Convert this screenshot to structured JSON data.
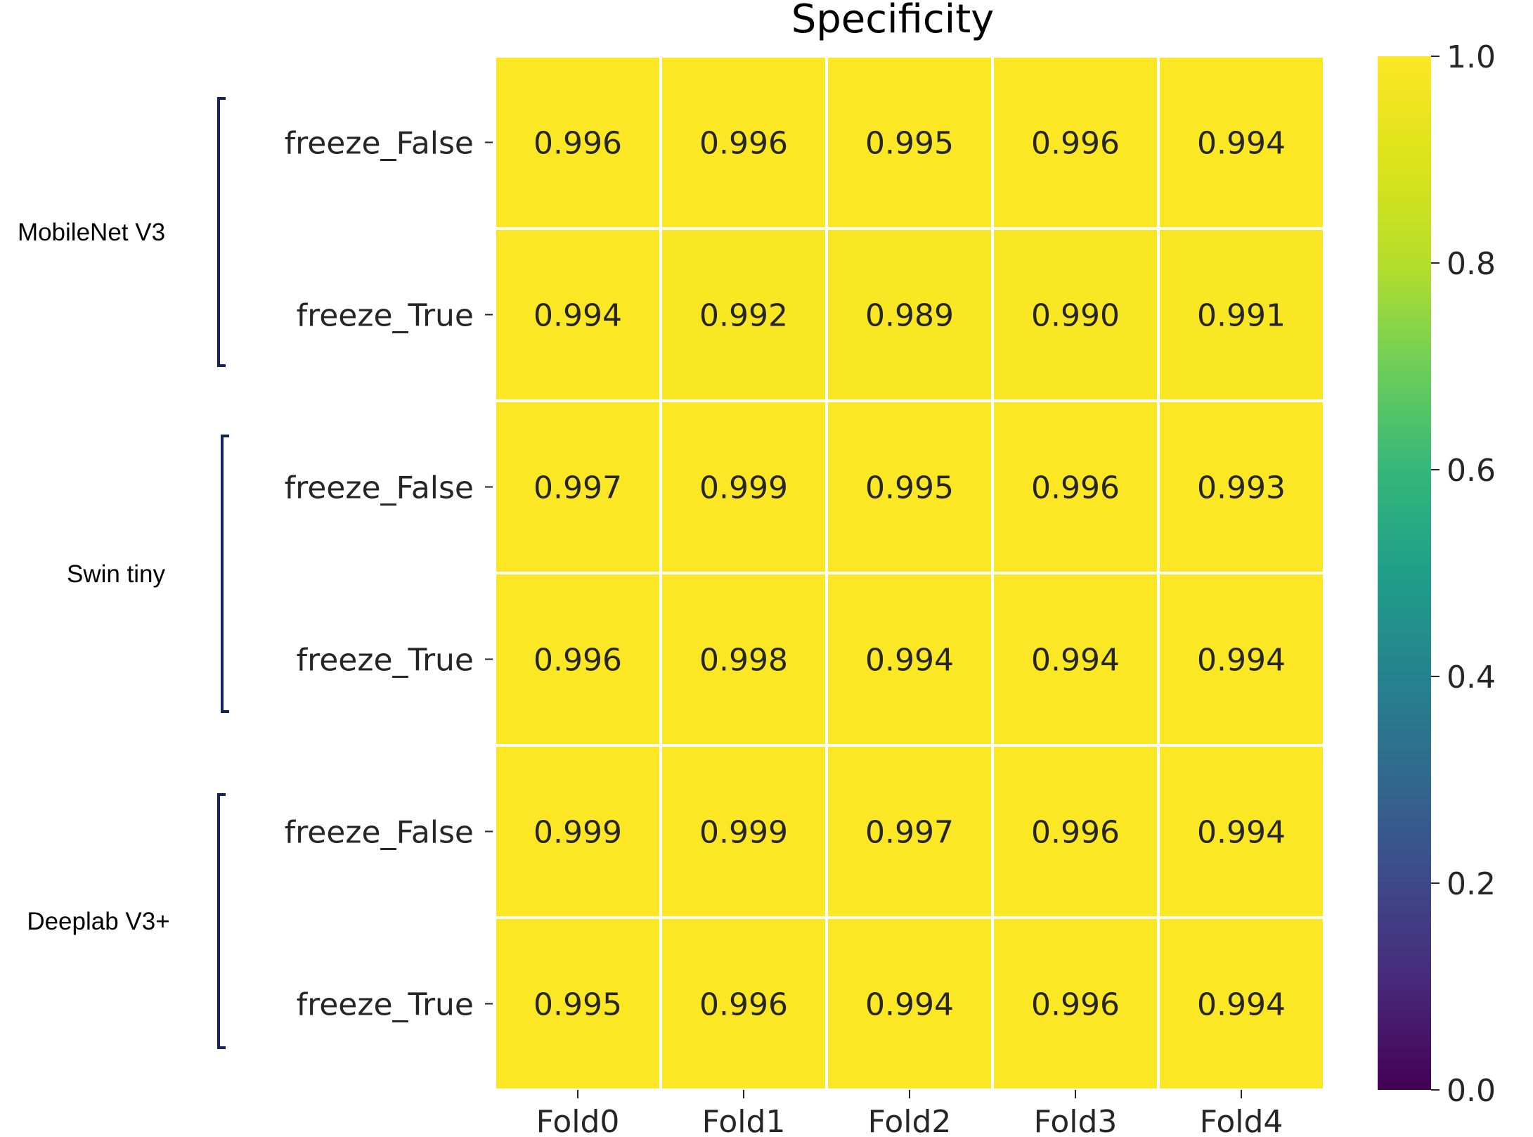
{
  "chart_data": {
    "type": "heatmap",
    "title": "Specificity",
    "x_categories": [
      "Fold0",
      "Fold1",
      "Fold2",
      "Fold3",
      "Fold4"
    ],
    "y_categories": [
      "freeze_False",
      "freeze_True",
      "freeze_False",
      "freeze_True",
      "freeze_False",
      "freeze_True"
    ],
    "groups": [
      {
        "name": "MobileNet V3",
        "rows": [
          0,
          1
        ]
      },
      {
        "name": "Swin tiny",
        "rows": [
          2,
          3
        ]
      },
      {
        "name": "Deeplab V3+",
        "rows": [
          4,
          5
        ]
      }
    ],
    "values": [
      [
        0.996,
        0.996,
        0.995,
        0.996,
        0.994
      ],
      [
        0.994,
        0.992,
        0.989,
        0.99,
        0.991
      ],
      [
        0.997,
        0.999,
        0.995,
        0.996,
        0.993
      ],
      [
        0.996,
        0.998,
        0.994,
        0.994,
        0.994
      ],
      [
        0.999,
        0.999,
        0.997,
        0.996,
        0.994
      ],
      [
        0.995,
        0.996,
        0.994,
        0.996,
        0.994
      ]
    ],
    "value_format": "0.000",
    "colormap": "viridis",
    "colorbar": {
      "range": [
        0.0,
        1.0
      ],
      "ticks": [
        0.0,
        0.2,
        0.4,
        0.6,
        0.8,
        1.0
      ],
      "tick_labels": [
        "0.0",
        "0.2",
        "0.4",
        "0.6",
        "0.8",
        "1.0"
      ]
    },
    "cell_border_color": "#ffffff"
  }
}
